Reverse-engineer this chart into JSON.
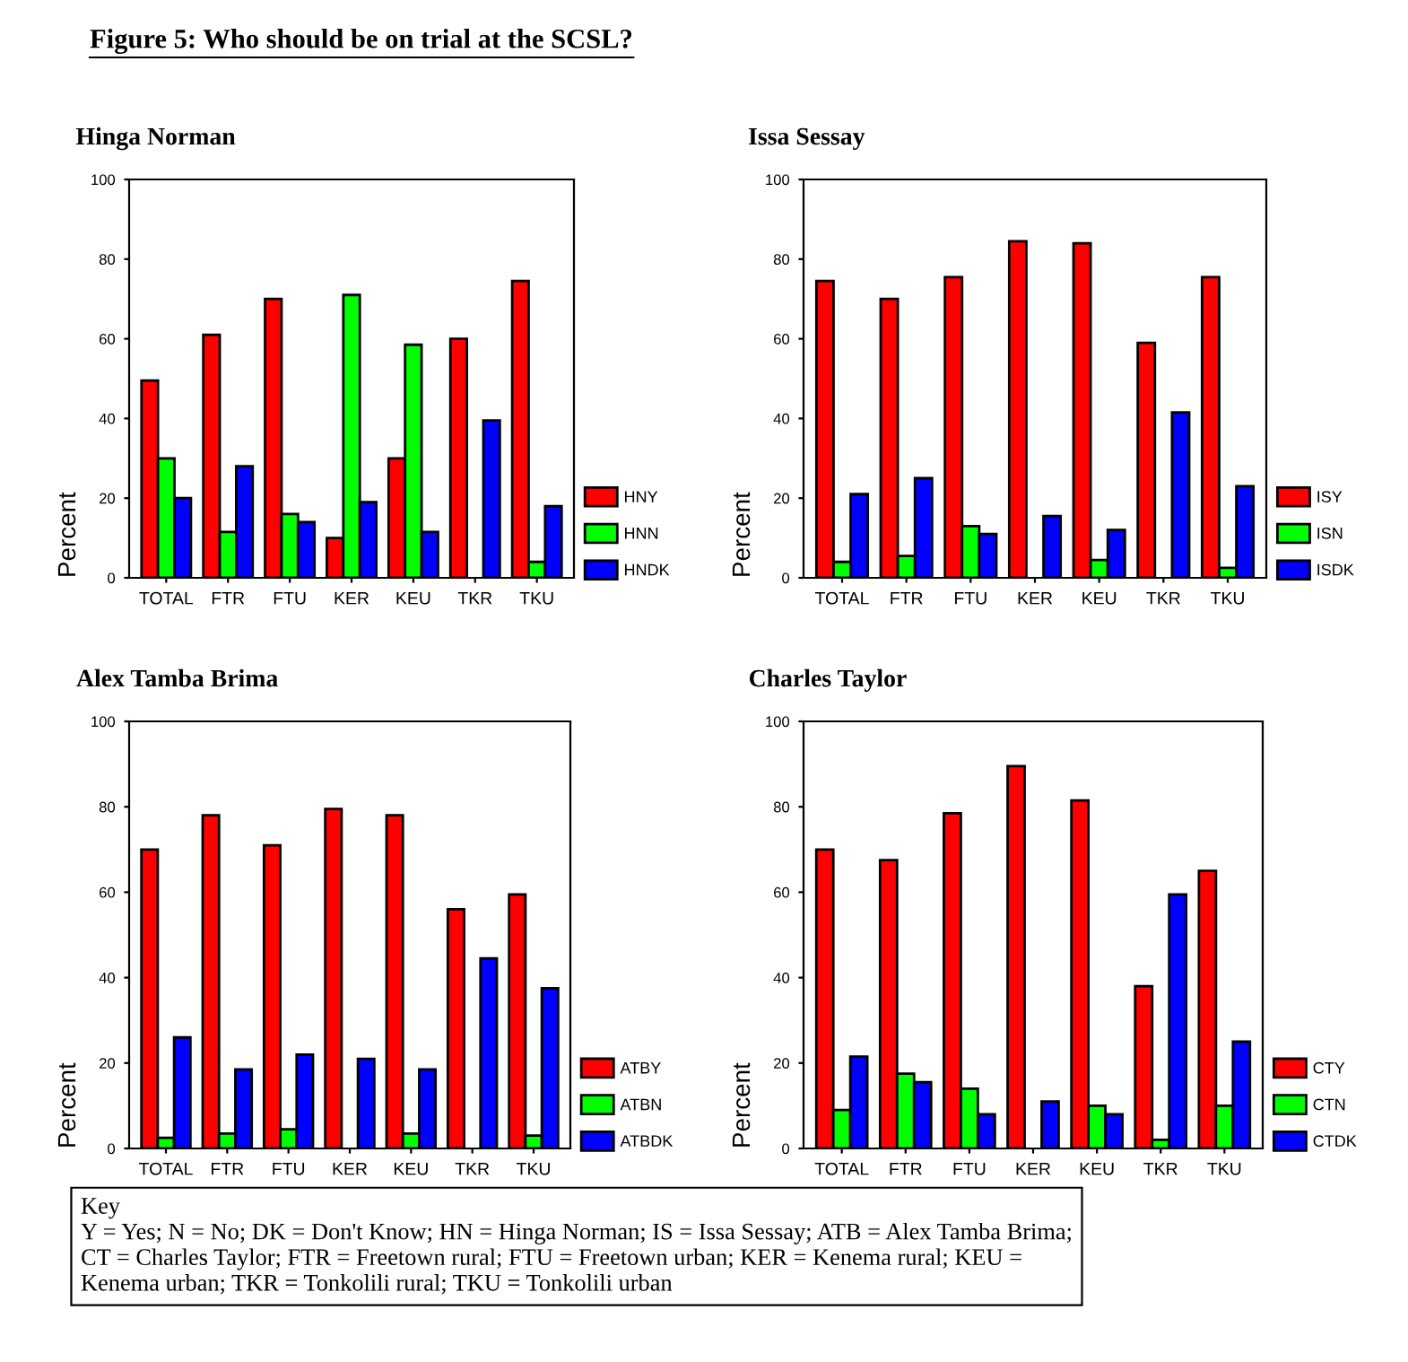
{
  "chart_data": [
    {
      "type": "bar",
      "title": "Hinga Norman",
      "ylabel": "Percent",
      "categories": [
        "TOTAL",
        "FTR",
        "FTU",
        "KER",
        "KEU",
        "TKR",
        "TKU"
      ],
      "ylim": [
        0,
        100
      ],
      "yticks": [
        0,
        20,
        40,
        60,
        80,
        100
      ],
      "legend": "bottom right",
      "grid": false,
      "annotations": [
        "Figure 5: Who should be on trial at the SCSL?"
      ],
      "series": [
        {
          "name": "HNY",
          "color": "#ff0000",
          "values": [
            49.5,
            61,
            70,
            10,
            30,
            60,
            74.5
          ]
        },
        {
          "name": "HNN",
          "color": "#00ff00",
          "values": [
            30,
            11.5,
            16,
            71,
            58.5,
            null,
            4
          ]
        },
        {
          "name": "HNDK",
          "color": "#0000ff",
          "values": [
            20,
            28,
            14,
            19,
            11.5,
            39.5,
            18
          ]
        }
      ]
    },
    {
      "type": "bar",
      "title": "Issa Sessay",
      "ylabel": "Percent",
      "categories": [
        "TOTAL",
        "FTR",
        "FTU",
        "KER",
        "KEU",
        "TKR",
        "TKU"
      ],
      "ylim": [
        0,
        100
      ],
      "yticks": [
        0,
        20,
        40,
        60,
        80,
        100
      ],
      "legend": "bottom right",
      "grid": false,
      "series": [
        {
          "name": "ISY",
          "color": "#ff0000",
          "values": [
            74.5,
            70,
            75.5,
            84.5,
            84,
            59,
            75.5
          ]
        },
        {
          "name": "ISN",
          "color": "#00ff00",
          "values": [
            4,
            5.5,
            13,
            null,
            4.5,
            null,
            2.5
          ]
        },
        {
          "name": "ISDK",
          "color": "#0000ff",
          "values": [
            21,
            25,
            11,
            15.5,
            12,
            41.5,
            23
          ]
        }
      ]
    },
    {
      "type": "bar",
      "title": "Alex Tamba Brima",
      "ylabel": "Percent",
      "categories": [
        "TOTAL",
        "FTR",
        "FTU",
        "KER",
        "KEU",
        "TKR",
        "TKU"
      ],
      "ylim": [
        0,
        100
      ],
      "yticks": [
        0,
        20,
        40,
        60,
        80,
        100
      ],
      "legend": "bottom right",
      "grid": false,
      "series": [
        {
          "name": "ATBY",
          "color": "#ff0000",
          "values": [
            70,
            78,
            71,
            79.5,
            78,
            56,
            59.5
          ]
        },
        {
          "name": "ATBN",
          "color": "#00ff00",
          "values": [
            2.5,
            3.5,
            4.5,
            null,
            3.5,
            null,
            3
          ]
        },
        {
          "name": "ATBDK",
          "color": "#0000ff",
          "values": [
            26,
            18.5,
            22,
            21,
            18.5,
            44.5,
            37.5
          ]
        }
      ]
    },
    {
      "type": "bar",
      "title": "Charles Taylor",
      "ylabel": "Percent",
      "categories": [
        "TOTAL",
        "FTR",
        "FTU",
        "KER",
        "KEU",
        "TKR",
        "TKU"
      ],
      "ylim": [
        0,
        100
      ],
      "yticks": [
        0,
        20,
        40,
        60,
        80,
        100
      ],
      "legend": "bottom right",
      "grid": false,
      "annotations": [
        "Key\nY = Yes; N = No; DK = Don't Know; HN = Hinga Norman; IS = Issa Sessay; ATB = Alex Tamba Brima;\nCT = Charles Taylor; FTR = Freetown rural; FTU = Freetown urban; KER = Kenema rural; KEU =\nKenema urban; TKR = Tonkolili rural; TKU = Tonkolili urban"
      ],
      "series": [
        {
          "name": "CTY",
          "color": "#ff0000",
          "values": [
            70,
            67.5,
            78.5,
            89.5,
            81.5,
            38,
            65
          ]
        },
        {
          "name": "CTN",
          "color": "#00ff00",
          "values": [
            9,
            17.5,
            14,
            null,
            10,
            2,
            10
          ]
        },
        {
          "name": "CTDK",
          "color": "#0000ff",
          "values": [
            21.5,
            15.5,
            8,
            11,
            8,
            59.5,
            25
          ]
        }
      ]
    }
  ]
}
